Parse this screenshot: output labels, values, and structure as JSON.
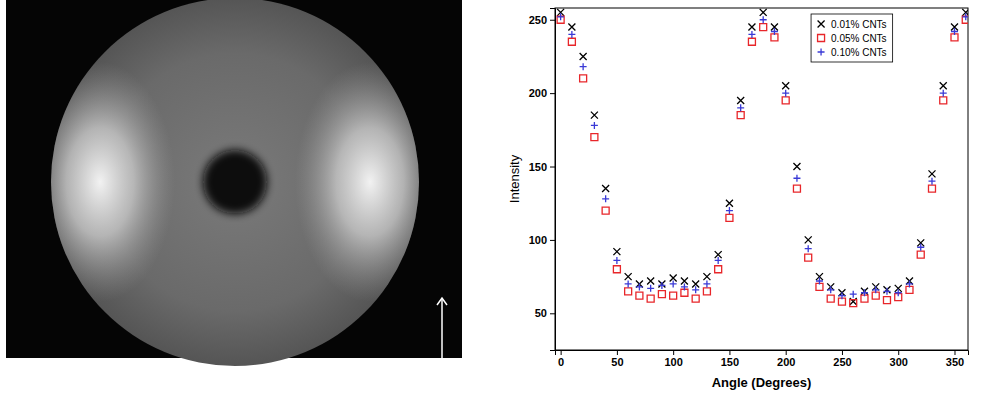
{
  "chart_data": {
    "type": "scatter",
    "x_label": "Angle (Degrees)",
    "y_label": "Intensity",
    "x": [
      0,
      10,
      20,
      30,
      40,
      50,
      60,
      70,
      80,
      90,
      100,
      110,
      120,
      130,
      140,
      150,
      160,
      170,
      180,
      190,
      200,
      210,
      220,
      230,
      240,
      250,
      260,
      270,
      280,
      290,
      300,
      310,
      320,
      330,
      340,
      350,
      360
    ],
    "series": [
      {
        "name": "0.01% CNTs",
        "color": "#000000",
        "marker": "x",
        "values": [
          255,
          245,
          225,
          185,
          135,
          92,
          75,
          70,
          72,
          70,
          74,
          72,
          70,
          75,
          90,
          125,
          195,
          245,
          255,
          245,
          205,
          150,
          100,
          75,
          68,
          64,
          58,
          65,
          68,
          66,
          67,
          72,
          98,
          145,
          205,
          245,
          255
        ]
      },
      {
        "name": "0.05% CNTs",
        "color": "#e8262a",
        "marker": "square",
        "values": [
          250,
          235,
          210,
          170,
          120,
          80,
          65,
          62,
          60,
          63,
          62,
          64,
          60,
          65,
          80,
          115,
          185,
          235,
          245,
          238,
          195,
          135,
          88,
          68,
          60,
          58,
          57,
          60,
          62,
          59,
          61,
          66,
          90,
          135,
          195,
          238,
          250
        ]
      },
      {
        "name": "0.10% CNTs",
        "color": "#3a3ad6",
        "marker": "plus",
        "values": [
          252,
          240,
          218,
          178,
          128,
          86,
          70,
          68,
          67,
          69,
          70,
          68,
          66,
          70,
          86,
          120,
          190,
          240,
          250,
          242,
          200,
          142,
          94,
          72,
          66,
          62,
          63,
          64,
          66,
          65,
          64,
          70,
          95,
          140,
          200,
          242,
          252
        ]
      }
    ],
    "xlim": [
      -5,
      362
    ],
    "ylim": [
      25,
      258
    ],
    "xticks": [
      0,
      50,
      100,
      150,
      200,
      250,
      300,
      350
    ],
    "yticks": [
      50,
      100,
      150,
      200,
      250
    ],
    "grid": false,
    "legend": "top"
  }
}
